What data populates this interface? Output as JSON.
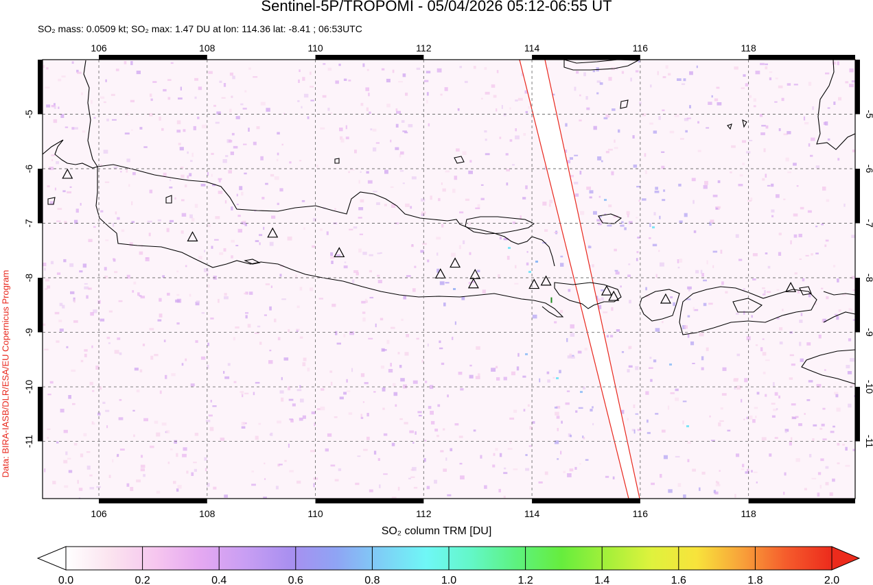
{
  "header": {
    "title": "Sentinel-5P/TROPOMI - 05/04/2026 05:12-06:55 UT",
    "subtitle": "SO₂ mass: 0.0509 kt; SO₂ max: 1.47 DU at lon: 114.36 lat: -8.41 ; 06:53UTC"
  },
  "credit": "Data: BIRA-IASB/DLR/ESA/EU Copernicus Program",
  "map": {
    "lon_range": [
      104.96,
      119.97
    ],
    "lat_range": [
      -12.05,
      -4.0
    ],
    "lon_ticks": [
      106,
      108,
      110,
      112,
      114,
      116,
      118
    ],
    "lon_tick_labels": [
      "106",
      "108",
      "110",
      "112",
      "114",
      "116",
      "118"
    ],
    "lat_ticks": [
      -5,
      -6,
      -7,
      -8,
      -9,
      -10,
      -11
    ],
    "lat_tick_labels": [
      "-5",
      "-6",
      "-7",
      "-8",
      "-9",
      "-10",
      "-11"
    ],
    "grid": true,
    "max_marker": {
      "lon": 114.36,
      "lat": -8.41,
      "value_du": 1.47
    },
    "volcanoes": [
      {
        "lon": 105.42,
        "lat": -6.1
      },
      {
        "lon": 107.73,
        "lat": -7.25
      },
      {
        "lon": 109.21,
        "lat": -7.18
      },
      {
        "lon": 110.44,
        "lat": -7.54
      },
      {
        "lon": 112.31,
        "lat": -7.93
      },
      {
        "lon": 112.58,
        "lat": -7.73
      },
      {
        "lon": 112.92,
        "lat": -8.11
      },
      {
        "lon": 112.95,
        "lat": -7.94
      },
      {
        "lon": 114.04,
        "lat": -8.12
      },
      {
        "lon": 114.26,
        "lat": -8.06
      },
      {
        "lon": 115.38,
        "lat": -8.24
      },
      {
        "lon": 115.51,
        "lat": -8.34
      },
      {
        "lon": 116.47,
        "lat": -8.39
      },
      {
        "lon": 118.78,
        "lat": -8.18
      }
    ]
  },
  "colorbar": {
    "title": "SO₂ column TRM [DU]",
    "min": 0.0,
    "max": 2.0,
    "tick_labels": [
      "0.0",
      "0.2",
      "0.4",
      "0.6",
      "0.8",
      "1.0",
      "1.2",
      "1.4",
      "1.6",
      "1.8",
      "2.0"
    ],
    "stops": [
      "#ffffff",
      "#fbe3ef",
      "#f6c6ef",
      "#e4a8f1",
      "#c89ef3",
      "#a88ff0",
      "#8fa4f4",
      "#7ecff6",
      "#6ff7f6",
      "#63f7c7",
      "#5df27f",
      "#66ed3d",
      "#a4f03a",
      "#dff23d",
      "#f8e33b",
      "#f8a23a",
      "#f55b2c",
      "#ec2b1c"
    ]
  },
  "colors": {
    "swath_edge": "#e8261b",
    "credit_text": "#e8261b"
  }
}
